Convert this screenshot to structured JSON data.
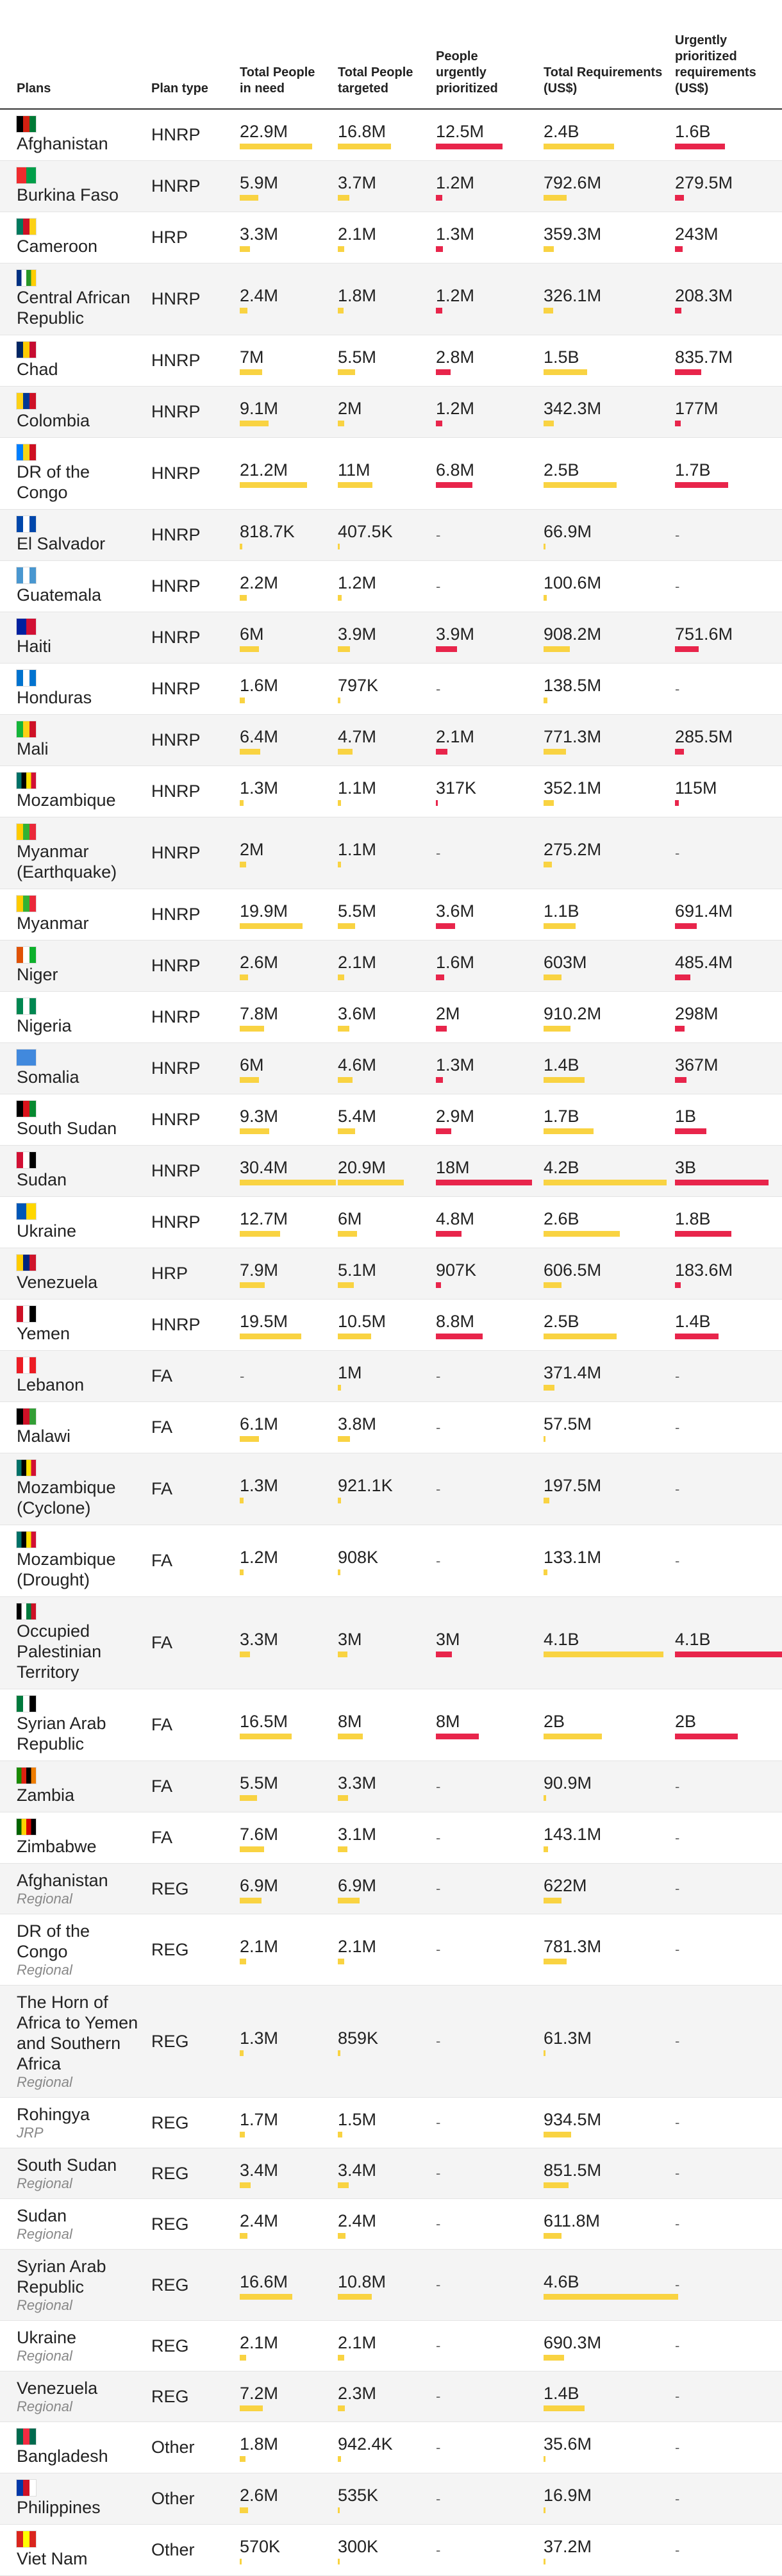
{
  "headers": {
    "plans": "Plans",
    "plan_type": "Plan type",
    "need": "Total People in need",
    "targeted": "Total People targeted",
    "urgent": "People urgently prioritized",
    "requirements": "Total Requirements (US$)",
    "urgent_requirements": "Urgently prioritized requirements (US$)"
  },
  "colors": {
    "people_bar": "#f9d342",
    "urgent_bar": "#e8254b"
  },
  "scale_max": {
    "people": 30.4,
    "urgent_people": 18,
    "requirements": 4.6,
    "urgent_requirements": 4.1
  },
  "rows": [
    {
      "plan": "Afghanistan",
      "type": "HNRP",
      "flag": [
        "#000000",
        "#d32011",
        "#007a36"
      ],
      "need": "22.9M",
      "need_v": 22.9,
      "targeted": "16.8M",
      "targeted_v": 16.8,
      "urgent": "12.5M",
      "urgent_v": 12.5,
      "req": "2.4B",
      "req_v": 2.4,
      "ureq": "1.6B",
      "ureq_v": 1.6
    },
    {
      "plan": "Burkina Faso",
      "type": "HNRP",
      "flag": [
        "#ef2b2d",
        "#009e49"
      ],
      "need": "5.9M",
      "need_v": 5.9,
      "targeted": "3.7M",
      "targeted_v": 3.7,
      "urgent": "1.2M",
      "urgent_v": 1.2,
      "req": "792.6M",
      "req_v": 0.7926,
      "ureq": "279.5M",
      "ureq_v": 0.2795
    },
    {
      "plan": "Cameroon",
      "type": "HRP",
      "flag": [
        "#007a5e",
        "#ce1126",
        "#fcd116"
      ],
      "need": "3.3M",
      "need_v": 3.3,
      "targeted": "2.1M",
      "targeted_v": 2.1,
      "urgent": "1.3M",
      "urgent_v": 1.3,
      "req": "359.3M",
      "req_v": 0.3593,
      "ureq": "243M",
      "ureq_v": 0.243
    },
    {
      "plan": "Central African Republic",
      "type": "HNRP",
      "flag": [
        "#003082",
        "#ffffff",
        "#289728",
        "#ffce00"
      ],
      "need": "2.4M",
      "need_v": 2.4,
      "targeted": "1.8M",
      "targeted_v": 1.8,
      "urgent": "1.2M",
      "urgent_v": 1.2,
      "req": "326.1M",
      "req_v": 0.3261,
      "ureq": "208.3M",
      "ureq_v": 0.2083
    },
    {
      "plan": "Chad",
      "type": "HNRP",
      "flag": [
        "#002664",
        "#fecb00",
        "#c60c30"
      ],
      "need": "7M",
      "need_v": 7,
      "targeted": "5.5M",
      "targeted_v": 5.5,
      "urgent": "2.8M",
      "urgent_v": 2.8,
      "req": "1.5B",
      "req_v": 1.5,
      "ureq": "835.7M",
      "ureq_v": 0.8357
    },
    {
      "plan": "Colombia",
      "type": "HNRP",
      "flag": [
        "#fcd116",
        "#003893",
        "#ce1126"
      ],
      "need": "9.1M",
      "need_v": 9.1,
      "targeted": "2M",
      "targeted_v": 2,
      "urgent": "1.2M",
      "urgent_v": 1.2,
      "req": "342.3M",
      "req_v": 0.3423,
      "ureq": "177M",
      "ureq_v": 0.177
    },
    {
      "plan": "DR of the Congo",
      "type": "HNRP",
      "flag": [
        "#007fff",
        "#f7d618",
        "#ce1021"
      ],
      "need": "21.2M",
      "need_v": 21.2,
      "targeted": "11M",
      "targeted_v": 11,
      "urgent": "6.8M",
      "urgent_v": 6.8,
      "req": "2.5B",
      "req_v": 2.5,
      "ureq": "1.7B",
      "ureq_v": 1.7
    },
    {
      "plan": "El Salvador",
      "type": "HNRP",
      "flag": [
        "#0047ab",
        "#ffffff",
        "#0047ab"
      ],
      "need": "818.7K",
      "need_v": 0.8187,
      "targeted": "407.5K",
      "targeted_v": 0.4075,
      "urgent": "-",
      "urgent_v": 0,
      "req": "66.9M",
      "req_v": 0.0669,
      "ureq": "-",
      "ureq_v": 0
    },
    {
      "plan": "Guatemala",
      "type": "HNRP",
      "flag": [
        "#4997d0",
        "#ffffff",
        "#4997d0"
      ],
      "need": "2.2M",
      "need_v": 2.2,
      "targeted": "1.2M",
      "targeted_v": 1.2,
      "urgent": "-",
      "urgent_v": 0,
      "req": "100.6M",
      "req_v": 0.1006,
      "ureq": "-",
      "ureq_v": 0
    },
    {
      "plan": "Haiti",
      "type": "HNRP",
      "flag": [
        "#00209f",
        "#d21034"
      ],
      "need": "6M",
      "need_v": 6,
      "targeted": "3.9M",
      "targeted_v": 3.9,
      "urgent": "3.9M",
      "urgent_v": 3.9,
      "req": "908.2M",
      "req_v": 0.9082,
      "ureq": "751.6M",
      "ureq_v": 0.7516
    },
    {
      "plan": "Honduras",
      "type": "HNRP",
      "flag": [
        "#0073cf",
        "#ffffff",
        "#0073cf"
      ],
      "need": "1.6M",
      "need_v": 1.6,
      "targeted": "797K",
      "targeted_v": 0.797,
      "urgent": "-",
      "urgent_v": 0,
      "req": "138.5M",
      "req_v": 0.1385,
      "ureq": "-",
      "ureq_v": 0
    },
    {
      "plan": "Mali",
      "type": "HNRP",
      "flag": [
        "#14b53a",
        "#fcd116",
        "#ce1126"
      ],
      "need": "6.4M",
      "need_v": 6.4,
      "targeted": "4.7M",
      "targeted_v": 4.7,
      "urgent": "2.1M",
      "urgent_v": 2.1,
      "req": "771.3M",
      "req_v": 0.7713,
      "ureq": "285.5M",
      "ureq_v": 0.2855
    },
    {
      "plan": "Mozambique",
      "type": "HNRP",
      "flag": [
        "#007168",
        "#000000",
        "#fce100",
        "#d21034"
      ],
      "need": "1.3M",
      "need_v": 1.3,
      "targeted": "1.1M",
      "targeted_v": 1.1,
      "urgent": "317K",
      "urgent_v": 0.317,
      "req": "352.1M",
      "req_v": 0.3521,
      "ureq": "115M",
      "ureq_v": 0.115
    },
    {
      "plan": "Myanmar (Earthquake)",
      "type": "HNRP",
      "flag": [
        "#fecb00",
        "#34b233",
        "#ea2839"
      ],
      "need": "2M",
      "need_v": 2,
      "targeted": "1.1M",
      "targeted_v": 1.1,
      "urgent": "-",
      "urgent_v": 0,
      "req": "275.2M",
      "req_v": 0.2752,
      "ureq": "-",
      "ureq_v": 0
    },
    {
      "plan": "Myanmar",
      "type": "HNRP",
      "flag": [
        "#fecb00",
        "#34b233",
        "#ea2839"
      ],
      "need": "19.9M",
      "need_v": 19.9,
      "targeted": "5.5M",
      "targeted_v": 5.5,
      "urgent": "3.6M",
      "urgent_v": 3.6,
      "req": "1.1B",
      "req_v": 1.1,
      "ureq": "691.4M",
      "ureq_v": 0.6914
    },
    {
      "plan": "Niger",
      "type": "HNRP",
      "flag": [
        "#e05206",
        "#ffffff",
        "#0db02b"
      ],
      "need": "2.6M",
      "need_v": 2.6,
      "targeted": "2.1M",
      "targeted_v": 2.1,
      "urgent": "1.6M",
      "urgent_v": 1.6,
      "req": "603M",
      "req_v": 0.603,
      "ureq": "485.4M",
      "ureq_v": 0.4854
    },
    {
      "plan": "Nigeria",
      "type": "HNRP",
      "flag": [
        "#008751",
        "#ffffff",
        "#008751"
      ],
      "need": "7.8M",
      "need_v": 7.8,
      "targeted": "3.6M",
      "targeted_v": 3.6,
      "urgent": "2M",
      "urgent_v": 2,
      "req": "910.2M",
      "req_v": 0.9102,
      "ureq": "298M",
      "ureq_v": 0.298
    },
    {
      "plan": "Somalia",
      "type": "HNRP",
      "flag": [
        "#4189dd",
        "#4189dd"
      ],
      "need": "6M",
      "need_v": 6,
      "targeted": "4.6M",
      "targeted_v": 4.6,
      "urgent": "1.3M",
      "urgent_v": 1.3,
      "req": "1.4B",
      "req_v": 1.4,
      "ureq": "367M",
      "ureq_v": 0.367
    },
    {
      "plan": "South Sudan",
      "type": "HNRP",
      "flag": [
        "#000000",
        "#da121a",
        "#078930"
      ],
      "need": "9.3M",
      "need_v": 9.3,
      "targeted": "5.4M",
      "targeted_v": 5.4,
      "urgent": "2.9M",
      "urgent_v": 2.9,
      "req": "1.7B",
      "req_v": 1.7,
      "ureq": "1B",
      "ureq_v": 1
    },
    {
      "plan": "Sudan",
      "type": "HNRP",
      "flag": [
        "#d21034",
        "#ffffff",
        "#000000"
      ],
      "need": "30.4M",
      "need_v": 30.4,
      "targeted": "20.9M",
      "targeted_v": 20.9,
      "urgent": "18M",
      "urgent_v": 18,
      "req": "4.2B",
      "req_v": 4.2,
      "ureq": "3B",
      "ureq_v": 3
    },
    {
      "plan": "Ukraine",
      "type": "HNRP",
      "flag": [
        "#0057b7",
        "#ffd700"
      ],
      "need": "12.7M",
      "need_v": 12.7,
      "targeted": "6M",
      "targeted_v": 6,
      "urgent": "4.8M",
      "urgent_v": 4.8,
      "req": "2.6B",
      "req_v": 2.6,
      "ureq": "1.8B",
      "ureq_v": 1.8
    },
    {
      "plan": "Venezuela",
      "type": "HRP",
      "flag": [
        "#ffcc00",
        "#00247d",
        "#cf142b"
      ],
      "need": "7.9M",
      "need_v": 7.9,
      "targeted": "5.1M",
      "targeted_v": 5.1,
      "urgent": "907K",
      "urgent_v": 0.907,
      "req": "606.5M",
      "req_v": 0.6065,
      "ureq": "183.6M",
      "ureq_v": 0.1836
    },
    {
      "plan": "Yemen",
      "type": "HNRP",
      "flag": [
        "#ce1126",
        "#ffffff",
        "#000000"
      ],
      "need": "19.5M",
      "need_v": 19.5,
      "targeted": "10.5M",
      "targeted_v": 10.5,
      "urgent": "8.8M",
      "urgent_v": 8.8,
      "req": "2.5B",
      "req_v": 2.5,
      "ureq": "1.4B",
      "ureq_v": 1.4
    },
    {
      "plan": "Lebanon",
      "type": "FA",
      "flag": [
        "#ed1c24",
        "#ffffff",
        "#ed1c24"
      ],
      "need": "-",
      "need_v": 0,
      "targeted": "1M",
      "targeted_v": 1,
      "urgent": "-",
      "urgent_v": 0,
      "req": "371.4M",
      "req_v": 0.3714,
      "ureq": "-",
      "ureq_v": 0
    },
    {
      "plan": "Malawi",
      "type": "FA",
      "flag": [
        "#000000",
        "#ce1126",
        "#339e35"
      ],
      "need": "6.1M",
      "need_v": 6.1,
      "targeted": "3.8M",
      "targeted_v": 3.8,
      "urgent": "-",
      "urgent_v": 0,
      "req": "57.5M",
      "req_v": 0.0575,
      "ureq": "-",
      "ureq_v": 0
    },
    {
      "plan": "Mozambique (Cyclone)",
      "type": "FA",
      "flag": [
        "#007168",
        "#000000",
        "#fce100",
        "#d21034"
      ],
      "need": "1.3M",
      "need_v": 1.3,
      "targeted": "921.1K",
      "targeted_v": 0.9211,
      "urgent": "-",
      "urgent_v": 0,
      "req": "197.5M",
      "req_v": 0.1975,
      "ureq": "-",
      "ureq_v": 0
    },
    {
      "plan": "Mozambique (Drought)",
      "type": "FA",
      "flag": [
        "#007168",
        "#000000",
        "#fce100",
        "#d21034"
      ],
      "need": "1.2M",
      "need_v": 1.2,
      "targeted": "908K",
      "targeted_v": 0.908,
      "urgent": "-",
      "urgent_v": 0,
      "req": "133.1M",
      "req_v": 0.1331,
      "ureq": "-",
      "ureq_v": 0
    },
    {
      "plan": "Occupied Palestinian Territory",
      "type": "FA",
      "flag": [
        "#000000",
        "#ffffff",
        "#007a3d",
        "#ce1126"
      ],
      "need": "3.3M",
      "need_v": 3.3,
      "targeted": "3M",
      "targeted_v": 3,
      "urgent": "3M",
      "urgent_v": 3,
      "req": "4.1B",
      "req_v": 4.1,
      "ureq": "4.1B",
      "ureq_v": 4.1
    },
    {
      "plan": "Syrian Arab Republic",
      "type": "FA",
      "flag": [
        "#007a3d",
        "#ffffff",
        "#000000"
      ],
      "need": "16.5M",
      "need_v": 16.5,
      "targeted": "8M",
      "targeted_v": 8,
      "urgent": "8M",
      "urgent_v": 8,
      "req": "2B",
      "req_v": 2,
      "ureq": "2B",
      "ureq_v": 2
    },
    {
      "plan": "Zambia",
      "type": "FA",
      "flag": [
        "#198a00",
        "#de2010",
        "#000000",
        "#ef7d00"
      ],
      "need": "5.5M",
      "need_v": 5.5,
      "targeted": "3.3M",
      "targeted_v": 3.3,
      "urgent": "-",
      "urgent_v": 0,
      "req": "90.9M",
      "req_v": 0.0909,
      "ureq": "-",
      "ureq_v": 0
    },
    {
      "plan": "Zimbabwe",
      "type": "FA",
      "flag": [
        "#006400",
        "#ffd200",
        "#d40000",
        "#000000"
      ],
      "need": "7.6M",
      "need_v": 7.6,
      "targeted": "3.1M",
      "targeted_v": 3.1,
      "urgent": "-",
      "urgent_v": 0,
      "req": "143.1M",
      "req_v": 0.1431,
      "ureq": "-",
      "ureq_v": 0
    },
    {
      "plan": "Afghanistan",
      "sub": "Regional",
      "type": "REG",
      "need": "6.9M",
      "need_v": 6.9,
      "targeted": "6.9M",
      "targeted_v": 6.9,
      "urgent": "-",
      "urgent_v": 0,
      "req": "622M",
      "req_v": 0.622,
      "ureq": "-",
      "ureq_v": 0
    },
    {
      "plan": "DR of the Congo",
      "sub": "Regional",
      "type": "REG",
      "need": "2.1M",
      "need_v": 2.1,
      "targeted": "2.1M",
      "targeted_v": 2.1,
      "urgent": "-",
      "urgent_v": 0,
      "req": "781.3M",
      "req_v": 0.7813,
      "ureq": "-",
      "ureq_v": 0
    },
    {
      "plan": "The Horn of Africa to Yemen and Southern Africa",
      "sub": "Regional",
      "type": "REG",
      "need": "1.3M",
      "need_v": 1.3,
      "targeted": "859K",
      "targeted_v": 0.859,
      "urgent": "-",
      "urgent_v": 0,
      "req": "61.3M",
      "req_v": 0.0613,
      "ureq": "-",
      "ureq_v": 0
    },
    {
      "plan": "Rohingya",
      "sub": "JRP",
      "type": "REG",
      "need": "1.7M",
      "need_v": 1.7,
      "targeted": "1.5M",
      "targeted_v": 1.5,
      "urgent": "-",
      "urgent_v": 0,
      "req": "934.5M",
      "req_v": 0.9345,
      "ureq": "-",
      "ureq_v": 0
    },
    {
      "plan": "South Sudan",
      "sub": "Regional",
      "type": "REG",
      "need": "3.4M",
      "need_v": 3.4,
      "targeted": "3.4M",
      "targeted_v": 3.4,
      "urgent": "-",
      "urgent_v": 0,
      "req": "851.5M",
      "req_v": 0.8515,
      "ureq": "-",
      "ureq_v": 0
    },
    {
      "plan": "Sudan",
      "sub": "Regional",
      "type": "REG",
      "need": "2.4M",
      "need_v": 2.4,
      "targeted": "2.4M",
      "targeted_v": 2.4,
      "urgent": "-",
      "urgent_v": 0,
      "req": "611.8M",
      "req_v": 0.6118,
      "ureq": "-",
      "ureq_v": 0
    },
    {
      "plan": "Syrian Arab Republic",
      "sub": "Regional",
      "type": "REG",
      "need": "16.6M",
      "need_v": 16.6,
      "targeted": "10.8M",
      "targeted_v": 10.8,
      "urgent": "-",
      "urgent_v": 0,
      "req": "4.6B",
      "req_v": 4.6,
      "ureq": "-",
      "ureq_v": 0
    },
    {
      "plan": "Ukraine",
      "sub": "Regional",
      "type": "REG",
      "need": "2.1M",
      "need_v": 2.1,
      "targeted": "2.1M",
      "targeted_v": 2.1,
      "urgent": "-",
      "urgent_v": 0,
      "req": "690.3M",
      "req_v": 0.6903,
      "ureq": "-",
      "ureq_v": 0
    },
    {
      "plan": "Venezuela",
      "sub": "Regional",
      "type": "REG",
      "need": "7.2M",
      "need_v": 7.2,
      "targeted": "2.3M",
      "targeted_v": 2.3,
      "urgent": "-",
      "urgent_v": 0,
      "req": "1.4B",
      "req_v": 1.4,
      "ureq": "-",
      "ureq_v": 0
    },
    {
      "plan": "Bangladesh",
      "type": "Other",
      "flag": [
        "#006a4e",
        "#f42a41",
        "#006a4e"
      ],
      "need": "1.8M",
      "need_v": 1.8,
      "targeted": "942.4K",
      "targeted_v": 0.9424,
      "urgent": "-",
      "urgent_v": 0,
      "req": "35.6M",
      "req_v": 0.0356,
      "ureq": "-",
      "ureq_v": 0
    },
    {
      "plan": "Philippines",
      "type": "Other",
      "flag": [
        "#0038a8",
        "#ce1126",
        "#ffffff"
      ],
      "need": "2.6M",
      "need_v": 2.6,
      "targeted": "535K",
      "targeted_v": 0.535,
      "urgent": "-",
      "urgent_v": 0,
      "req": "16.9M",
      "req_v": 0.0169,
      "ureq": "-",
      "ureq_v": 0
    },
    {
      "plan": "Viet Nam",
      "type": "Other",
      "flag": [
        "#da251d",
        "#ffff00",
        "#da251d"
      ],
      "need": "570K",
      "need_v": 0.57,
      "targeted": "300K",
      "targeted_v": 0.3,
      "urgent": "-",
      "urgent_v": 0,
      "req": "37.2M",
      "req_v": 0.0372,
      "ureq": "-",
      "ureq_v": 0
    }
  ]
}
